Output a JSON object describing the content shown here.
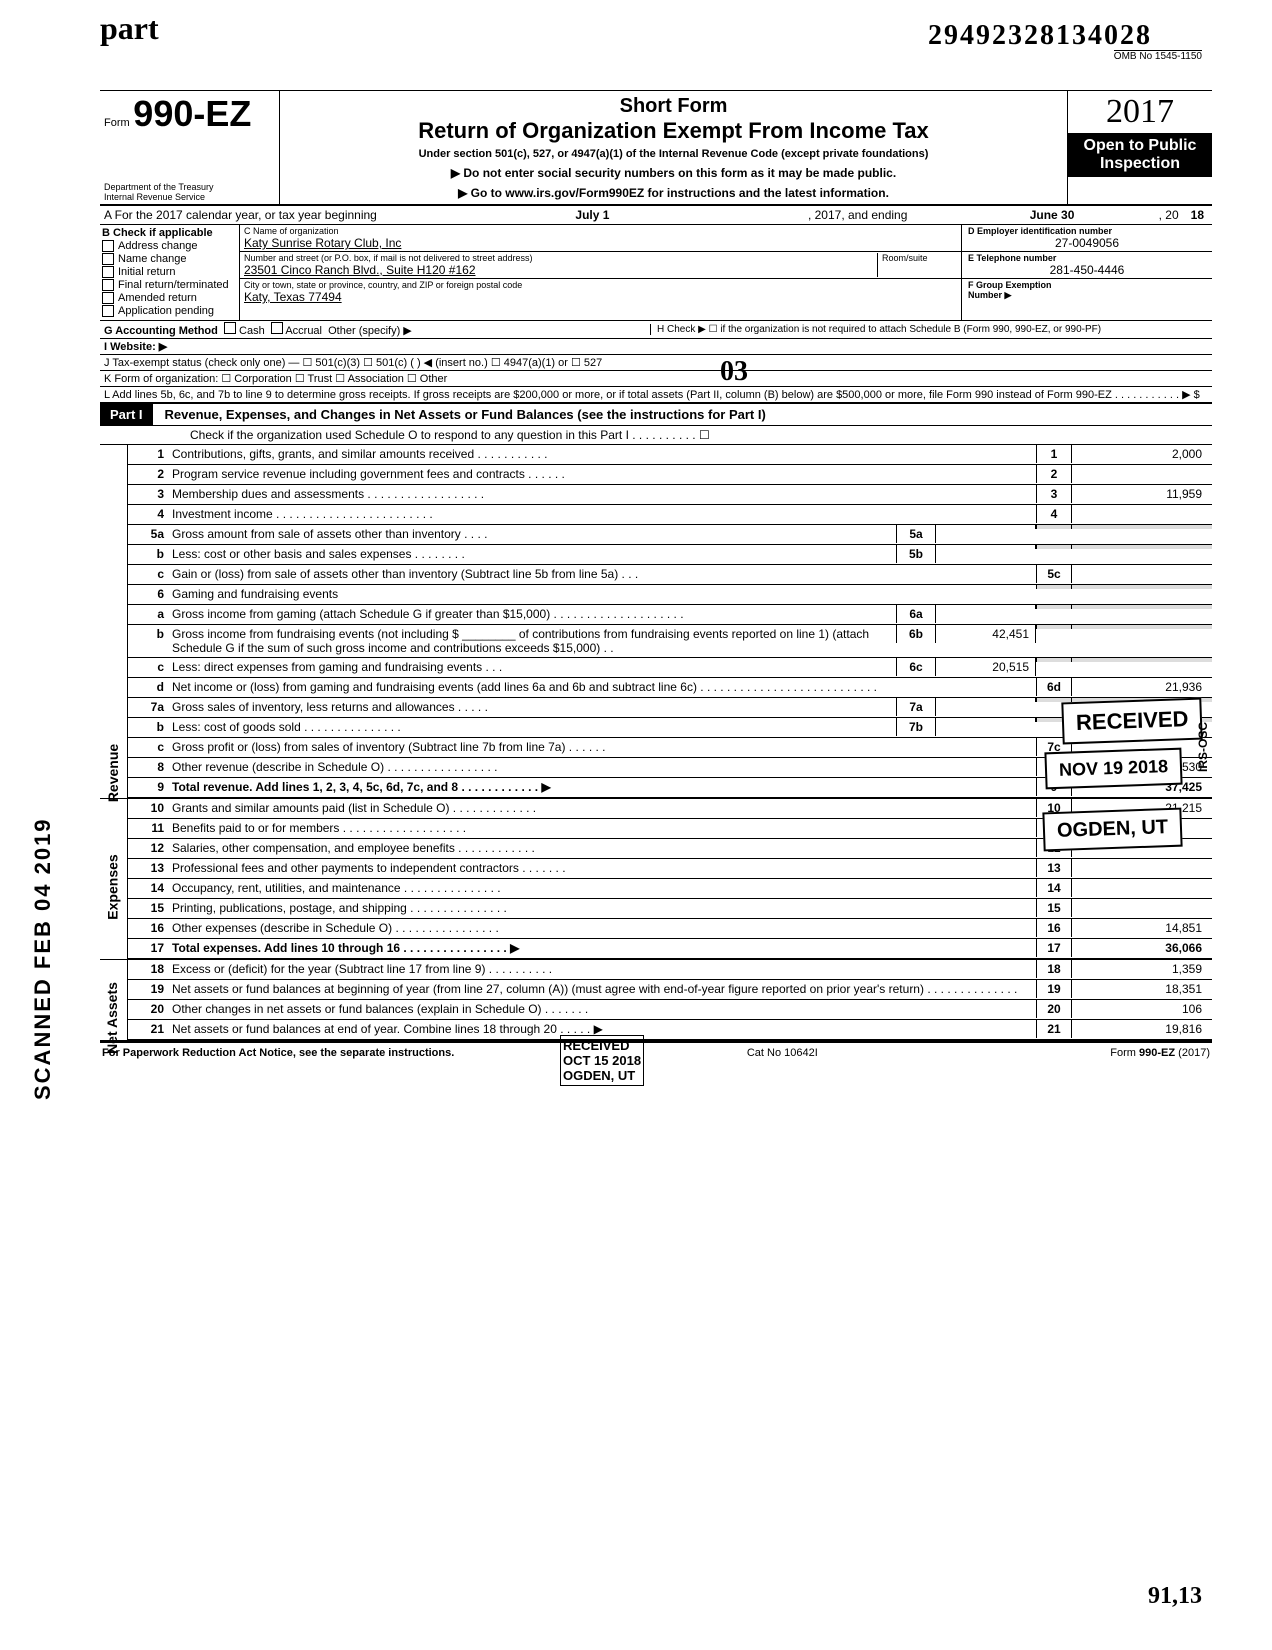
{
  "handwriting": {
    "part": "part",
    "bignum": "29492328134028",
    "d3": "03",
    "bottom": "91,13"
  },
  "omb": "OMB No 1545-1150",
  "header": {
    "form_prefix": "Form",
    "form_number": "990-EZ",
    "title1": "Short Form",
    "title2": "Return of Organization Exempt From Income Tax",
    "under": "Under section 501(c), 527, or 4947(a)(1) of the Internal Revenue Code (except private foundations)",
    "arrow1": "▶ Do not enter social security numbers on this form as it may be made public.",
    "arrow2": "▶ Go to www.irs.gov/Form990EZ for instructions and the latest information.",
    "dept": "Department of the Treasury\nInternal Revenue Service",
    "year": "2017",
    "open1": "Open to Public",
    "open2": "Inspection"
  },
  "lineA": {
    "prefix": "A  For the 2017 calendar year, or tax year beginning",
    "start": "July 1",
    "mid": ", 2017, and ending",
    "end": "June 30",
    "suffix": ", 20",
    "yy": "18"
  },
  "colB": {
    "label": "B  Check if applicable",
    "items": [
      "Address change",
      "Name change",
      "Initial return",
      "Final return/terminated",
      "Amended return",
      "Application pending"
    ]
  },
  "colC": {
    "name_lbl": "C  Name of organization",
    "name": "Katy Sunrise Rotary Club, Inc",
    "addr_lbl": "Number and street (or P.O. box, if mail is not delivered to street address)",
    "room": "Room/suite",
    "addr": "23501 Cinco Ranch Blvd., Suite H120 #162",
    "city_lbl": "City or town, state or province, country, and ZIP or foreign postal code",
    "city": "Katy, Texas 77494"
  },
  "colD": {
    "d_lbl": "D Employer identification number",
    "d_val": "27-0049056",
    "e_lbl": "E Telephone number",
    "e_val": "281-450-4446",
    "f_lbl": "F Group Exemption",
    "f_lbl2": "Number ▶"
  },
  "meta": {
    "g": "G  Accounting Method",
    "g_opts": [
      "Cash",
      "Accrual",
      "Other (specify) ▶"
    ],
    "h": "H  Check ▶ ☐ if the organization is not required to attach Schedule B (Form 990, 990-EZ, or 990-PF)",
    "i": "I  Website: ▶",
    "j": "J  Tax-exempt status (check only one) —  ☐ 501(c)(3)   ☐ 501(c) (       ) ◀ (insert no.)  ☐ 4947(a)(1) or   ☐ 527",
    "k": "K  Form of organization:   ☐ Corporation    ☐ Trust    ☐ Association    ☐ Other",
    "l": "L  Add lines 5b, 6c, and 7b to line 9 to determine gross receipts. If gross receipts are $200,000 or more, or if total assets (Part II, column (B) below) are $500,000 or more, file Form 990 instead of Form 990-EZ . . . . . . . . . . . ▶  $"
  },
  "part1": {
    "label": "Part I",
    "title": "Revenue, Expenses, and Changes in Net Assets or Fund Balances (see the instructions for Part I)",
    "check": "Check if the organization used Schedule O to respond to any question in this Part I . . . . . . . . . . ☐"
  },
  "sections": {
    "revenue": "Revenue",
    "expenses": "Expenses",
    "net": "Net Assets"
  },
  "lines": [
    {
      "n": "1",
      "d": "Contributions, gifts, grants, and similar amounts received . . . . . . . . . . .",
      "r": "1",
      "v": "2,000"
    },
    {
      "n": "2",
      "d": "Program service revenue including government fees and contracts . . . . . .",
      "r": "2",
      "v": ""
    },
    {
      "n": "3",
      "d": "Membership dues and assessments . . . . . . . . . . . . . . . . . .",
      "r": "3",
      "v": "11,959"
    },
    {
      "n": "4",
      "d": "Investment income . . . . . . . . . . . . . . . . . . . . . . . .",
      "r": "4",
      "v": ""
    },
    {
      "n": "5a",
      "d": "Gross amount from sale of assets other than inventory . . . .",
      "mb": "5a",
      "mv": ""
    },
    {
      "n": "b",
      "d": "Less: cost or other basis and sales expenses . . . . . . . .",
      "mb": "5b",
      "mv": ""
    },
    {
      "n": "c",
      "d": "Gain or (loss) from sale of assets other than inventory (Subtract line 5b from line 5a) . . .",
      "r": "5c",
      "v": ""
    },
    {
      "n": "6",
      "d": "Gaming and fundraising events"
    },
    {
      "n": "a",
      "d": "Gross income from gaming (attach Schedule G if greater than $15,000) . . . . . . . . . . . . . . . . . . . .",
      "mb": "6a",
      "mv": ""
    },
    {
      "n": "b",
      "d": "Gross income from fundraising events (not including  $ ________ of contributions from fundraising events reported on line 1) (attach Schedule G if the sum of such gross income and contributions exceeds $15,000) . .",
      "mb": "6b",
      "mv": "42,451"
    },
    {
      "n": "c",
      "d": "Less: direct expenses from gaming and fundraising events . . .",
      "mb": "6c",
      "mv": "20,515"
    },
    {
      "n": "d",
      "d": "Net income or (loss) from gaming and fundraising events (add lines 6a and 6b and subtract line 6c) . . . . . . . . . . . . . . . . . . . . . . . . . . .",
      "r": "6d",
      "v": "21,936"
    },
    {
      "n": "7a",
      "d": "Gross sales of inventory, less returns and allowances . . . . .",
      "mb": "7a",
      "mv": ""
    },
    {
      "n": "b",
      "d": "Less: cost of goods sold . . . . . . . . . . . . . . .",
      "mb": "7b",
      "mv": ""
    },
    {
      "n": "c",
      "d": "Gross profit or (loss) from sales of inventory (Subtract line 7b from line 7a) . . . . . .",
      "r": "7c",
      "v": ""
    },
    {
      "n": "8",
      "d": "Other revenue (describe in Schedule O) . . . . . . . . . . . . . . . . .",
      "r": "8",
      "v": "1,530"
    },
    {
      "n": "9",
      "d": "Total revenue. Add lines 1, 2, 3, 4, 5c, 6d, 7c, and 8 . . . . . . . . . . . . ▶",
      "r": "9",
      "v": "37,425",
      "bold": true
    },
    {
      "n": "10",
      "d": "Grants and similar amounts paid (list in Schedule O) . . . . . . . . . . . . .",
      "r": "10",
      "v": "21,215"
    },
    {
      "n": "11",
      "d": "Benefits paid to or for members . . . . . . . . . . . . . . . . . . .",
      "r": "11",
      "v": ""
    },
    {
      "n": "12",
      "d": "Salaries, other compensation, and employee benefits . . . . . . . . . . . .",
      "r": "12",
      "v": ""
    },
    {
      "n": "13",
      "d": "Professional fees and other payments to independent contractors . . . . . . .",
      "r": "13",
      "v": ""
    },
    {
      "n": "14",
      "d": "Occupancy, rent, utilities, and maintenance . . . . . . . . . . . . . . .",
      "r": "14",
      "v": ""
    },
    {
      "n": "15",
      "d": "Printing, publications, postage, and shipping . . . . . . . . . . . . . . .",
      "r": "15",
      "v": ""
    },
    {
      "n": "16",
      "d": "Other expenses (describe in Schedule O) . . . . . . . . . . . . . . . .",
      "r": "16",
      "v": "14,851"
    },
    {
      "n": "17",
      "d": "Total expenses. Add lines 10 through 16 . . . . . . . . . . . . . . . . ▶",
      "r": "17",
      "v": "36,066",
      "bold": true
    },
    {
      "n": "18",
      "d": "Excess or (deficit) for the year (Subtract line 17 from line 9) . . . . . . . . . .",
      "r": "18",
      "v": "1,359"
    },
    {
      "n": "19",
      "d": "Net assets or fund balances at beginning of year (from line 27, column (A)) (must agree with end-of-year figure reported on prior year's return) . . . . . . . . . . . . . .",
      "r": "19",
      "v": "18,351"
    },
    {
      "n": "20",
      "d": "Other changes in net assets or fund balances (explain in Schedule O) . . . . . . .",
      "r": "20",
      "v": "106"
    },
    {
      "n": "21",
      "d": "Net assets or fund balances at end of year. Combine lines 18 through 20 . . . . . ▶",
      "r": "21",
      "v": "19,816"
    }
  ],
  "stamps": {
    "received": "RECEIVED",
    "date": "NOV 19 2018",
    "ogden": "OGDEN, UT",
    "irs_osc": "IRS-OSC",
    "second": "RECEIVED\nOCT 15 2018\nOGDEN, UT",
    "scanned": "SCANNED FEB 04 2019"
  },
  "footer": {
    "left": "For Paperwork Reduction Act Notice, see the separate instructions.",
    "mid": "Cat No 10642I",
    "right": "Form 990-EZ (2017)"
  }
}
